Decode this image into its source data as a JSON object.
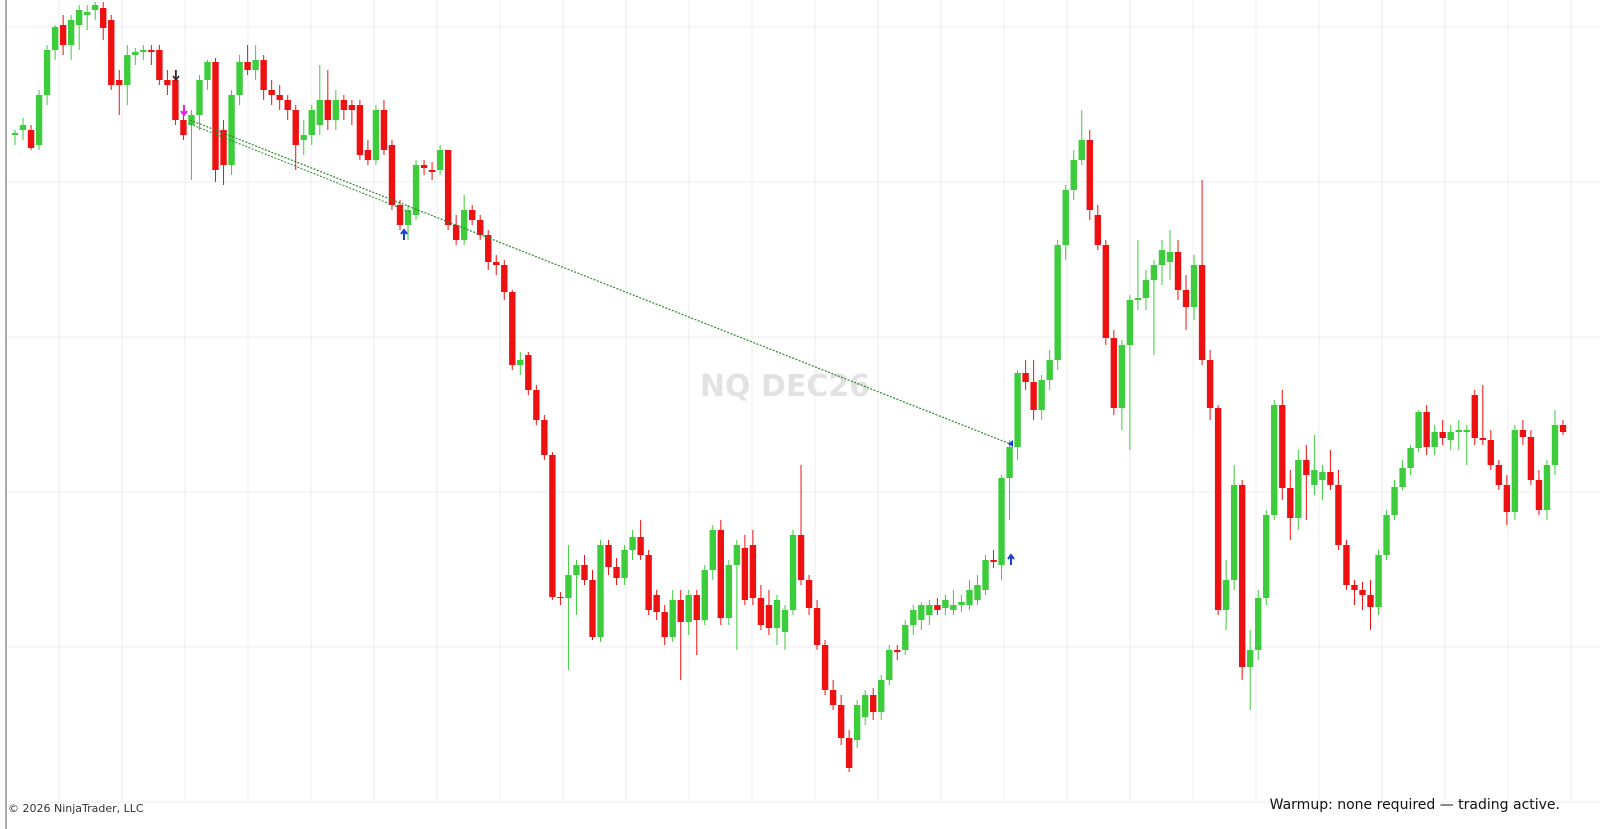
{
  "chart_data": {
    "type": "candlestick",
    "watermark": "NQ DEC26",
    "up_color": "#3ccc3c",
    "down_color": "#ee1111",
    "ylim": [
      0,
      830
    ],
    "ohlc": [
      [
        695,
        700,
        685,
        697
      ],
      [
        700,
        712,
        690,
        705
      ],
      [
        700,
        705,
        680,
        682
      ],
      [
        685,
        740,
        680,
        735
      ],
      [
        735,
        785,
        725,
        780
      ],
      [
        780,
        805,
        770,
        803
      ],
      [
        805,
        815,
        775,
        785
      ],
      [
        785,
        815,
        770,
        810
      ],
      [
        805,
        825,
        780,
        820
      ],
      [
        815,
        825,
        800,
        818
      ],
      [
        820,
        828,
        810,
        825
      ],
      [
        822,
        828,
        790,
        802
      ],
      [
        810,
        815,
        740,
        745
      ],
      [
        750,
        760,
        715,
        745
      ],
      [
        745,
        785,
        725,
        775
      ],
      [
        775,
        782,
        765,
        778
      ],
      [
        778,
        785,
        770,
        780
      ],
      [
        780,
        785,
        765,
        778
      ],
      [
        780,
        785,
        745,
        750
      ],
      [
        750,
        760,
        735,
        745
      ],
      [
        750,
        760,
        705,
        710
      ],
      [
        710,
        715,
        690,
        695
      ],
      [
        705,
        720,
        650,
        715
      ],
      [
        715,
        755,
        700,
        750
      ],
      [
        750,
        770,
        740,
        768
      ],
      [
        768,
        772,
        648,
        660
      ],
      [
        700,
        710,
        645,
        665
      ],
      [
        665,
        740,
        655,
        735
      ],
      [
        735,
        775,
        725,
        768
      ],
      [
        768,
        785,
        755,
        760
      ],
      [
        760,
        785,
        750,
        770
      ],
      [
        770,
        775,
        730,
        740
      ],
      [
        740,
        750,
        725,
        735
      ],
      [
        735,
        745,
        720,
        730
      ],
      [
        730,
        735,
        710,
        720
      ],
      [
        720,
        725,
        660,
        685
      ],
      [
        690,
        710,
        675,
        695
      ],
      [
        695,
        725,
        685,
        720
      ],
      [
        705,
        765,
        695,
        730
      ],
      [
        730,
        760,
        700,
        710
      ],
      [
        710,
        740,
        700,
        730
      ],
      [
        730,
        735,
        710,
        720
      ],
      [
        725,
        730,
        705,
        720
      ],
      [
        725,
        730,
        670,
        675
      ],
      [
        680,
        690,
        665,
        670
      ],
      [
        670,
        725,
        665,
        720
      ],
      [
        720,
        730,
        675,
        680
      ],
      [
        685,
        690,
        620,
        625
      ],
      [
        625,
        630,
        600,
        605
      ],
      [
        605,
        625,
        590,
        620
      ],
      [
        615,
        670,
        610,
        665
      ],
      [
        665,
        670,
        655,
        662
      ],
      [
        660,
        668,
        650,
        658
      ],
      [
        660,
        685,
        655,
        680
      ],
      [
        680,
        680,
        600,
        605
      ],
      [
        605,
        615,
        585,
        590
      ],
      [
        590,
        635,
        585,
        620
      ],
      [
        620,
        625,
        605,
        610
      ],
      [
        610,
        615,
        590,
        595
      ],
      [
        595,
        600,
        560,
        568
      ],
      [
        568,
        575,
        555,
        565
      ],
      [
        565,
        570,
        530,
        538
      ],
      [
        538,
        540,
        460,
        465
      ],
      [
        465,
        478,
        455,
        470
      ],
      [
        475,
        478,
        435,
        440
      ],
      [
        440,
        445,
        405,
        410
      ],
      [
        410,
        415,
        370,
        375
      ],
      [
        375,
        378,
        230,
        233
      ],
      [
        233,
        238,
        225,
        232
      ],
      [
        232,
        285,
        160,
        255
      ],
      [
        255,
        270,
        215,
        265
      ],
      [
        265,
        275,
        245,
        250
      ],
      [
        250,
        260,
        190,
        193
      ],
      [
        193,
        290,
        188,
        285
      ],
      [
        285,
        290,
        255,
        263
      ],
      [
        263,
        272,
        245,
        252
      ],
      [
        252,
        285,
        245,
        280
      ],
      [
        280,
        300,
        270,
        293
      ],
      [
        293,
        310,
        270,
        275
      ],
      [
        275,
        280,
        215,
        220
      ],
      [
        235,
        240,
        210,
        218
      ],
      [
        218,
        225,
        185,
        193
      ],
      [
        193,
        240,
        188,
        230
      ],
      [
        230,
        240,
        150,
        208
      ],
      [
        208,
        240,
        195,
        235
      ],
      [
        235,
        240,
        175,
        210
      ],
      [
        210,
        265,
        205,
        260
      ],
      [
        260,
        305,
        250,
        300
      ],
      [
        300,
        310,
        205,
        212
      ],
      [
        212,
        270,
        205,
        265
      ],
      [
        265,
        290,
        180,
        285
      ],
      [
        282,
        295,
        225,
        230
      ],
      [
        285,
        300,
        225,
        232
      ],
      [
        232,
        245,
        200,
        205
      ],
      [
        225,
        240,
        195,
        202
      ],
      [
        202,
        235,
        185,
        230
      ],
      [
        198,
        225,
        180,
        220
      ],
      [
        220,
        300,
        215,
        295
      ],
      [
        295,
        365,
        245,
        250
      ],
      [
        250,
        255,
        215,
        222
      ],
      [
        222,
        230,
        180,
        185
      ],
      [
        185,
        190,
        135,
        140
      ],
      [
        140,
        150,
        120,
        125
      ],
      [
        125,
        135,
        85,
        92
      ],
      [
        92,
        100,
        58,
        62
      ],
      [
        90,
        130,
        82,
        125
      ],
      [
        113,
        140,
        105,
        135
      ],
      [
        135,
        142,
        110,
        118
      ],
      [
        118,
        155,
        110,
        150
      ],
      [
        150,
        185,
        145,
        180
      ],
      [
        180,
        185,
        170,
        178
      ],
      [
        180,
        210,
        175,
        205
      ],
      [
        205,
        225,
        195,
        220
      ],
      [
        210,
        228,
        200,
        225
      ],
      [
        215,
        230,
        205,
        225
      ],
      [
        225,
        232,
        215,
        220
      ],
      [
        222,
        235,
        215,
        230
      ],
      [
        220,
        240,
        215,
        225
      ],
      [
        225,
        235,
        218,
        228
      ],
      [
        225,
        250,
        220,
        240
      ],
      [
        230,
        255,
        225,
        245
      ],
      [
        240,
        275,
        235,
        270
      ],
      [
        270,
        280,
        262,
        268
      ],
      [
        265,
        355,
        250,
        352
      ],
      [
        352,
        390,
        310,
        383
      ],
      [
        383,
        460,
        370,
        457
      ],
      [
        457,
        470,
        440,
        448
      ],
      [
        448,
        470,
        410,
        420
      ],
      [
        420,
        455,
        410,
        450
      ],
      [
        450,
        480,
        440,
        470
      ],
      [
        470,
        590,
        460,
        585
      ],
      [
        585,
        645,
        570,
        640
      ],
      [
        640,
        680,
        630,
        670
      ],
      [
        670,
        720,
        665,
        690
      ],
      [
        690,
        700,
        610,
        620
      ],
      [
        615,
        625,
        580,
        585
      ],
      [
        585,
        590,
        485,
        492
      ],
      [
        492,
        500,
        415,
        422
      ],
      [
        422,
        490,
        400,
        485
      ],
      [
        485,
        535,
        380,
        530
      ],
      [
        530,
        590,
        520,
        532
      ],
      [
        532,
        560,
        520,
        550
      ],
      [
        550,
        570,
        475,
        565
      ],
      [
        565,
        590,
        545,
        580
      ],
      [
        568,
        600,
        550,
        578
      ],
      [
        578,
        590,
        530,
        540
      ],
      [
        540,
        555,
        500,
        523
      ],
      [
        523,
        575,
        510,
        565
      ],
      [
        565,
        650,
        465,
        470
      ],
      [
        470,
        480,
        410,
        422
      ],
      [
        422,
        425,
        215,
        220
      ],
      [
        220,
        270,
        200,
        250
      ],
      [
        250,
        365,
        240,
        345
      ],
      [
        345,
        350,
        150,
        163
      ],
      [
        163,
        200,
        120,
        180
      ],
      [
        180,
        240,
        170,
        232
      ],
      [
        232,
        320,
        225,
        315
      ],
      [
        315,
        430,
        310,
        425
      ],
      [
        425,
        440,
        330,
        342
      ],
      [
        342,
        360,
        290,
        312
      ],
      [
        312,
        380,
        300,
        370
      ],
      [
        370,
        385,
        310,
        355
      ],
      [
        345,
        395,
        335,
        360
      ],
      [
        350,
        365,
        330,
        358
      ],
      [
        358,
        380,
        340,
        345
      ],
      [
        345,
        360,
        280,
        285
      ],
      [
        285,
        290,
        240,
        245
      ],
      [
        245,
        250,
        225,
        240
      ],
      [
        240,
        248,
        220,
        235
      ],
      [
        235,
        250,
        200,
        223
      ],
      [
        223,
        280,
        215,
        275
      ],
      [
        275,
        320,
        270,
        315
      ],
      [
        315,
        350,
        310,
        343
      ],
      [
        343,
        370,
        340,
        362
      ],
      [
        362,
        385,
        355,
        382
      ],
      [
        382,
        420,
        378,
        418
      ],
      [
        418,
        425,
        375,
        383
      ],
      [
        383,
        405,
        375,
        398
      ],
      [
        398,
        410,
        385,
        392
      ],
      [
        390,
        405,
        380,
        398
      ],
      [
        398,
        410,
        380,
        400
      ],
      [
        398,
        405,
        365,
        400
      ],
      [
        435,
        440,
        385,
        392
      ],
      [
        392,
        445,
        385,
        390
      ],
      [
        390,
        400,
        360,
        365
      ],
      [
        365,
        370,
        340,
        345
      ],
      [
        345,
        355,
        305,
        318
      ],
      [
        318,
        405,
        310,
        400
      ],
      [
        400,
        410,
        385,
        393
      ],
      [
        393,
        400,
        345,
        350
      ],
      [
        350,
        360,
        315,
        320
      ],
      [
        320,
        370,
        310,
        365
      ],
      [
        365,
        420,
        355,
        405
      ],
      [
        405,
        410,
        395,
        398
      ]
    ]
  },
  "footer": {
    "copyright": "© 2026 NinjaTrader, LLC",
    "status": "Warmup: none required — trading active."
  }
}
